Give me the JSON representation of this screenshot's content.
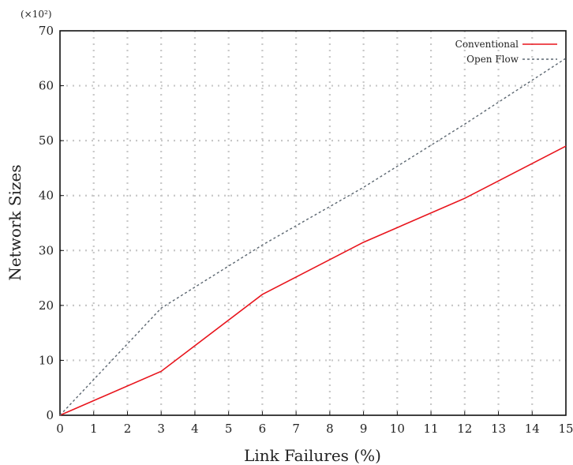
{
  "chart_data": {
    "type": "line",
    "title": "",
    "xlabel": "Link Failures (%)",
    "ylabel": "Network Sizes",
    "y_scale_note": "(×10²)",
    "xlim": [
      0,
      15
    ],
    "ylim": [
      0,
      70
    ],
    "x_ticks": [
      0,
      1,
      2,
      3,
      4,
      5,
      6,
      7,
      8,
      9,
      10,
      11,
      12,
      13,
      14,
      15
    ],
    "y_ticks": [
      0,
      10,
      20,
      30,
      40,
      50,
      60,
      70
    ],
    "grid": true,
    "legend_position": "top-right",
    "series": [
      {
        "name": "Conventional",
        "color": "#e8141c",
        "style": "solid",
        "x": [
          0,
          3,
          6,
          9,
          12,
          15
        ],
        "y": [
          0,
          8,
          22,
          31.5,
          39.5,
          49
        ]
      },
      {
        "name": "Open Flow",
        "color": "#5b6670",
        "style": "dashed",
        "x": [
          0,
          3,
          6,
          9,
          12,
          15
        ],
        "y": [
          0,
          19.5,
          31,
          41.5,
          53,
          65
        ]
      }
    ]
  }
}
